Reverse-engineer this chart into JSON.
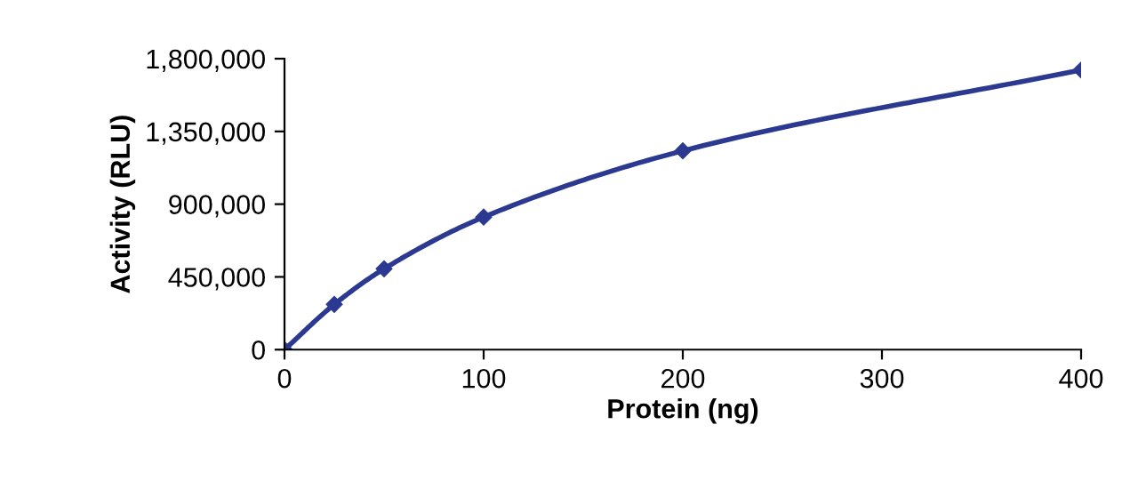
{
  "chart_data": {
    "type": "line",
    "xlabel": "Protein (ng)",
    "ylabel": "Activity (RLU)",
    "x": [
      0,
      25,
      50,
      100,
      200,
      400
    ],
    "series": [
      {
        "color": "#2b3990",
        "values": [
          0,
          280000,
          500000,
          820000,
          1230000,
          1730000
        ]
      }
    ],
    "xlim": [
      0,
      400
    ],
    "xticks": [
      0,
      100,
      200,
      300,
      400
    ],
    "ylim": [
      0,
      1800000
    ],
    "yticks": [
      {
        "value": 0,
        "label": "0"
      },
      {
        "value": 450000,
        "label": "450,000"
      },
      {
        "value": 900000,
        "label": "900,000"
      },
      {
        "value": 1350000,
        "label": "1,350,000"
      },
      {
        "value": 1800000,
        "label": "1,800,000"
      }
    ],
    "grid": false,
    "legend": false,
    "marker": "diamond",
    "line_style": "solid"
  }
}
